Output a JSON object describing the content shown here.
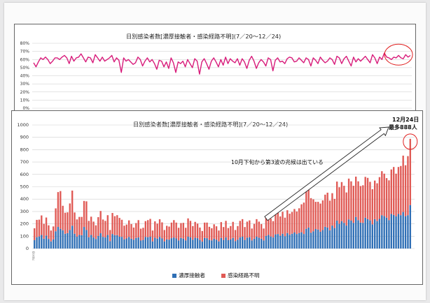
{
  "chart_data": [
    {
      "type": "line",
      "title": "日別感染者数[濃厚接触者・感染経路不明](7／20〜12／24)",
      "ylim": [
        0,
        80
      ],
      "yticks": [
        "0%",
        "10%",
        "20%",
        "30%",
        "40%",
        "50%",
        "60%",
        "70%",
        "80%"
      ],
      "series": [
        {
          "color": "#d81b7a",
          "values": [
            56,
            51,
            57,
            62,
            60,
            63,
            60,
            55,
            58,
            62,
            62,
            60,
            63,
            65,
            62,
            55,
            64,
            58,
            62,
            63,
            67,
            62,
            57,
            63,
            62,
            56,
            66,
            62,
            58,
            63,
            58,
            60,
            62,
            65,
            57,
            62,
            59,
            44,
            62,
            58,
            60,
            57,
            54,
            56,
            63,
            60,
            52,
            58,
            62,
            57,
            60,
            55,
            48,
            59,
            58,
            51,
            57,
            49,
            62,
            56,
            44,
            57,
            55,
            58,
            51,
            60,
            55,
            50,
            61,
            58,
            42,
            57,
            61,
            55,
            48,
            58,
            62,
            57,
            51,
            60,
            53,
            63,
            55,
            61,
            58,
            56,
            61,
            53,
            61,
            57,
            49,
            59,
            64,
            58,
            49,
            56,
            60,
            57,
            52,
            62,
            60,
            46,
            59,
            62,
            57,
            58,
            55,
            61,
            63,
            62,
            57,
            58,
            62,
            59,
            56,
            62,
            60,
            52,
            62,
            59,
            55,
            63,
            59,
            56,
            58,
            62,
            60,
            54,
            64,
            62,
            55,
            61,
            64,
            58,
            52,
            63,
            57,
            61,
            58,
            61,
            64,
            60,
            56,
            66,
            62,
            55,
            63,
            60,
            68,
            63,
            62,
            60,
            63,
            62,
            65,
            62,
            61,
            66,
            63,
            65
          ]
        }
      ],
      "highlight": "circle around late December values"
    },
    {
      "type": "bar",
      "stacked": true,
      "title": "日別感染者数[濃厚接触者・感染経路不明](7／20〜12／24)",
      "ylim": [
        0,
        1000
      ],
      "yticks": [
        0,
        100,
        200,
        300,
        400,
        500,
        600,
        700,
        800,
        900,
        1000
      ],
      "x_start_label": "7月20日",
      "x_end_label": "12月24日",
      "series": [
        {
          "name": "濃厚接触者",
          "color": "#2f6fb5",
          "values": [
            68,
            92,
            98,
            110,
            80,
            105,
            78,
            58,
            75,
            140,
            175,
            160,
            148,
            120,
            125,
            150,
            185,
            120,
            96,
            110,
            108,
            175,
            150,
            92,
            110,
            90,
            78,
            102,
            124,
            95,
            90,
            110,
            60,
            118,
            108,
            108,
            96,
            95,
            75,
            82,
            94,
            80,
            72,
            86,
            90,
            65,
            70,
            94,
            92,
            96,
            58,
            88,
            80,
            95,
            82,
            58,
            74,
            72,
            84,
            90,
            82,
            66,
            86,
            80,
            66,
            96,
            90,
            72,
            88,
            84,
            70,
            56,
            86,
            84,
            70,
            66,
            80,
            72,
            58,
            86,
            70,
            90,
            68,
            74,
            86,
            60,
            72,
            90,
            96,
            70,
            88,
            92,
            66,
            80,
            96,
            88,
            80,
            66,
            102,
            110,
            98,
            90,
            115,
            118,
            104,
            120,
            100,
            126,
            112,
            120,
            130,
            118,
            126,
            132,
            118,
            160,
            170,
            128,
            140,
            158,
            154,
            136,
            150,
            176,
            170,
            148,
            186,
            166,
            226,
            200,
            222,
            208,
            186,
            236,
            226,
            208,
            256,
            230,
            210,
            208,
            250,
            238,
            228,
            196,
            238,
            222,
            240,
            270,
            262,
            250,
            230,
            280,
            272,
            260,
            280,
            270,
            296,
            262,
            270,
            352
          ]
        },
        {
          "name": "感染経路不明",
          "color": "#e05a55",
          "values": [
            96,
            140,
            136,
            158,
            120,
            146,
            110,
            88,
            104,
            185,
            282,
            305,
            198,
            170,
            168,
            215,
            284,
            172,
            140,
            146,
            148,
            210,
            232,
            132,
            148,
            128,
            110,
            152,
            180,
            140,
            134,
            160,
            90,
            170,
            154,
            162,
            152,
            138,
            110,
            112,
            134,
            118,
            98,
            120,
            140,
            96,
            98,
            128,
            138,
            144,
            88,
            132,
            122,
            142,
            130,
            92,
            110,
            106,
            126,
            140,
            128,
            102,
            120,
            128,
            102,
            148,
            134,
            110,
            128,
            118,
            100,
            86,
            124,
            126,
            106,
            98,
            116,
            108,
            88,
            128,
            104,
            134,
            98,
            108,
            130,
            90,
            110,
            134,
            142,
            104,
            130,
            136,
            96,
            120,
            142,
            130,
            118,
            96,
            148,
            158,
            144,
            132,
            168,
            176,
            156,
            178,
            150,
            184,
            170,
            176,
            190,
            182,
            200,
            226,
            254,
            314,
            340,
            280,
            258,
            220,
            224,
            228,
            240,
            260,
            282,
            240,
            262,
            236,
            316,
            296,
            316,
            300,
            268,
            330,
            318,
            300,
            326,
            314,
            296,
            304,
            330,
            334,
            312,
            284,
            312,
            306,
            338,
            356,
            344,
            320,
            322,
            360,
            388,
            346,
            380,
            398,
            456,
            412,
            478,
            536
          ]
        }
      ],
      "annotations": [
        "10月下旬から第3波の兆候は出ている",
        "12月24日",
        "最多888人"
      ]
    }
  ]
}
